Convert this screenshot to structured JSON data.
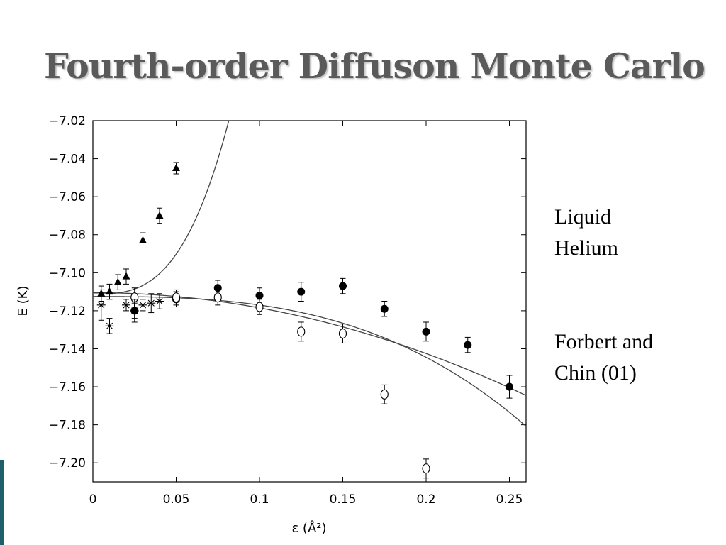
{
  "slide": {
    "title": "Fourth-order Diffuson Monte Carlo",
    "note1": "Liquid\nHelium",
    "note2": "Forbert  and\nChin (01)",
    "accent_color": "#1f5f6b"
  },
  "chart_data": {
    "type": "scatter",
    "xlabel": "ε (Å²)",
    "ylabel": "E (K)",
    "xlim": [
      0,
      0.26
    ],
    "ylim": [
      -7.21,
      -7.02
    ],
    "xticks": [
      "0",
      "0.05",
      "0.1",
      "0.15",
      "0.2",
      "0.25"
    ],
    "xtick_values": [
      0,
      0.05,
      0.1,
      0.15,
      0.2,
      0.25
    ],
    "yticks": [
      "−7.02",
      "−7.04",
      "−7.06",
      "−7.08",
      "−7.10",
      "−7.12",
      "−7.14",
      "−7.16",
      "−7.18",
      "−7.20"
    ],
    "ytick_values": [
      -7.02,
      -7.04,
      -7.06,
      -7.08,
      -7.1,
      -7.12,
      -7.14,
      -7.16,
      -7.18,
      -7.2
    ],
    "grid": false,
    "series": [
      {
        "marker": "filled-triangle",
        "x": [
          0.005,
          0.01,
          0.015,
          0.02,
          0.03,
          0.04,
          0.05
        ],
        "y": [
          -7.111,
          -7.11,
          -7.105,
          -7.102,
          -7.083,
          -7.07,
          -7.045
        ],
        "yerr": [
          0.004,
          0.004,
          0.004,
          0.004,
          0.004,
          0.004,
          0.003
        ]
      },
      {
        "marker": "filled-circle",
        "x": [
          0.025,
          0.05,
          0.075,
          0.1,
          0.125,
          0.15,
          0.175,
          0.2,
          0.225,
          0.25
        ],
        "y": [
          -7.12,
          -7.114,
          -7.108,
          -7.112,
          -7.11,
          -7.107,
          -7.119,
          -7.131,
          -7.138,
          -7.16
        ],
        "yerr": [
          0.004,
          0.004,
          0.004,
          0.004,
          0.005,
          0.004,
          0.004,
          0.005,
          0.004,
          0.006
        ]
      },
      {
        "marker": "open-circle",
        "x": [
          0.025,
          0.05,
          0.075,
          0.1,
          0.125,
          0.15,
          0.175,
          0.2
        ],
        "y": [
          -7.113,
          -7.113,
          -7.113,
          -7.118,
          -7.131,
          -7.132,
          -7.164,
          -7.203
        ],
        "yerr": [
          0.005,
          0.004,
          0.004,
          0.004,
          0.005,
          0.005,
          0.005,
          0.005
        ]
      },
      {
        "marker": "asterisk",
        "x": [
          0.005,
          0.01,
          0.02,
          0.025,
          0.03,
          0.035,
          0.04
        ],
        "y": [
          -7.117,
          -7.128,
          -7.117,
          -7.12,
          -7.117,
          -7.116,
          -7.115
        ],
        "yerr": [
          0.008,
          0.004,
          0.003,
          0.006,
          0.003,
          0.005,
          0.004
        ]
      }
    ],
    "fit_curves": [
      {
        "for": "filled-triangle",
        "e0": -7.1112,
        "coef": 0.0,
        "a4": 168.0
      },
      {
        "for": "filled-circle",
        "e0": -7.1105,
        "coef": -0.8,
        "a4": 0.0
      },
      {
        "for": "open-circle",
        "e0": -7.1125,
        "coef": -0.1,
        "a4": -3.5
      }
    ]
  }
}
